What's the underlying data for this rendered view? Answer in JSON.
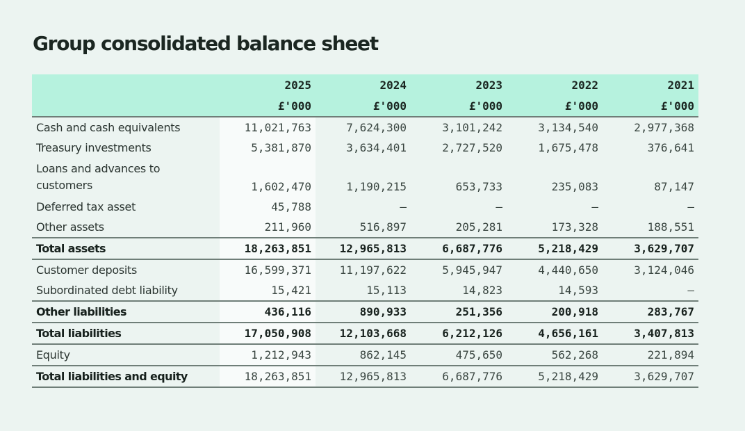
{
  "page": {
    "title": "Group consolidated balance sheet"
  },
  "table": {
    "years": [
      "2025",
      "2024",
      "2023",
      "2022",
      "2021"
    ],
    "unit": "£'000",
    "rows": [
      {
        "label": "Cash and cash equivalents",
        "values": [
          "11,021,763",
          "7,624,300",
          "3,101,242",
          "3,134,540",
          "2,977,368"
        ]
      },
      {
        "label": "Treasury investments",
        "values": [
          "5,381,870",
          "3,634,401",
          "2,727,520",
          "1,675,478",
          "376,641"
        ]
      },
      {
        "label": "Loans and advances to customers",
        "values": [
          "1,602,470",
          "1,190,215",
          "653,733",
          "235,083",
          "87,147"
        ]
      },
      {
        "label": "Deferred tax asset",
        "values": [
          "45,788",
          "—",
          "—",
          "—",
          "—"
        ]
      },
      {
        "label": "Other assets",
        "values": [
          "211,960",
          "516,897",
          "205,281",
          "173,328",
          "188,551"
        ]
      },
      {
        "label": "Total assets",
        "values": [
          "18,263,851",
          "12,965,813",
          "6,687,776",
          "5,218,429",
          "3,629,707"
        ]
      },
      {
        "label": "Customer deposits",
        "values": [
          "16,599,371",
          "11,197,622",
          "5,945,947",
          "4,440,650",
          "3,124,046"
        ]
      },
      {
        "label": "Subordinated debt liability",
        "values": [
          "15,421",
          "15,113",
          "14,823",
          "14,593",
          "—"
        ]
      },
      {
        "label": "Other liabilities",
        "values": [
          "436,116",
          "890,933",
          "251,356",
          "200,918",
          "283,767"
        ]
      },
      {
        "label": "Total liabilities",
        "values": [
          "17,050,908",
          "12,103,668",
          "6,212,126",
          "4,656,161",
          "3,407,813"
        ]
      },
      {
        "label": "Equity",
        "values": [
          "1,212,943",
          "862,145",
          "475,650",
          "562,268",
          "221,894"
        ]
      },
      {
        "label": "Total liabilities and equity",
        "values": [
          "18,263,851",
          "12,965,813",
          "6,687,776",
          "5,218,429",
          "3,629,707"
        ]
      }
    ]
  }
}
